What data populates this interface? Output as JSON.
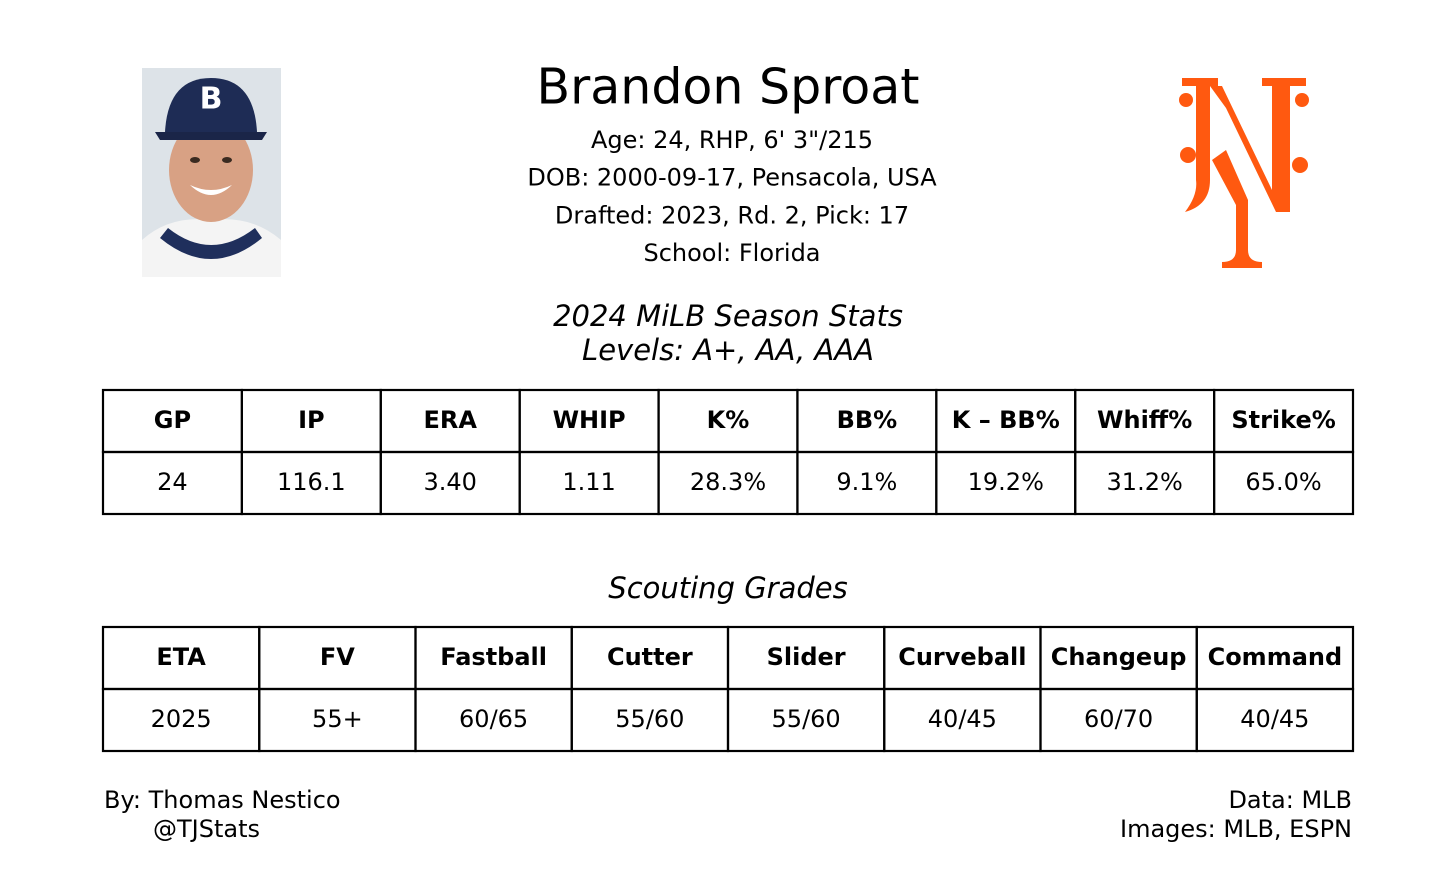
{
  "header": {
    "name": "Brandon Sproat",
    "lines": [
      "Age: 24, RHP, 6' 3\"/215",
      "DOB: 2000-09-17, Pensacola, USA",
      "Drafted: 2023, Rd. 2, Pick: 17",
      "School: Florida"
    ]
  },
  "stats": {
    "title": "2024 MiLB Season Stats",
    "subtitle": "Levels: A+, AA, AAA",
    "columns": [
      "GP",
      "IP",
      "ERA",
      "WHIP",
      "K%",
      "BB%",
      "K – BB%",
      "Whiff%",
      "Strike%"
    ],
    "rows": [
      [
        "24",
        "116.1",
        "3.40",
        "1.11",
        "28.3%",
        "9.1%",
        "19.2%",
        "31.2%",
        "65.0%"
      ]
    ]
  },
  "grades": {
    "title": "Scouting Grades",
    "columns": [
      "ETA",
      "FV",
      "Fastball",
      "Cutter",
      "Slider",
      "Curveball",
      "Changeup",
      "Command"
    ],
    "rows": [
      [
        "2025",
        "55+",
        "60/65",
        "55/60",
        "55/60",
        "40/45",
        "60/70",
        "40/45"
      ]
    ]
  },
  "footer": {
    "left": [
      "By: Thomas Nestico",
      "@TJStats"
    ],
    "right": [
      "Data: MLB",
      "Images: MLB, ESPN"
    ]
  }
}
